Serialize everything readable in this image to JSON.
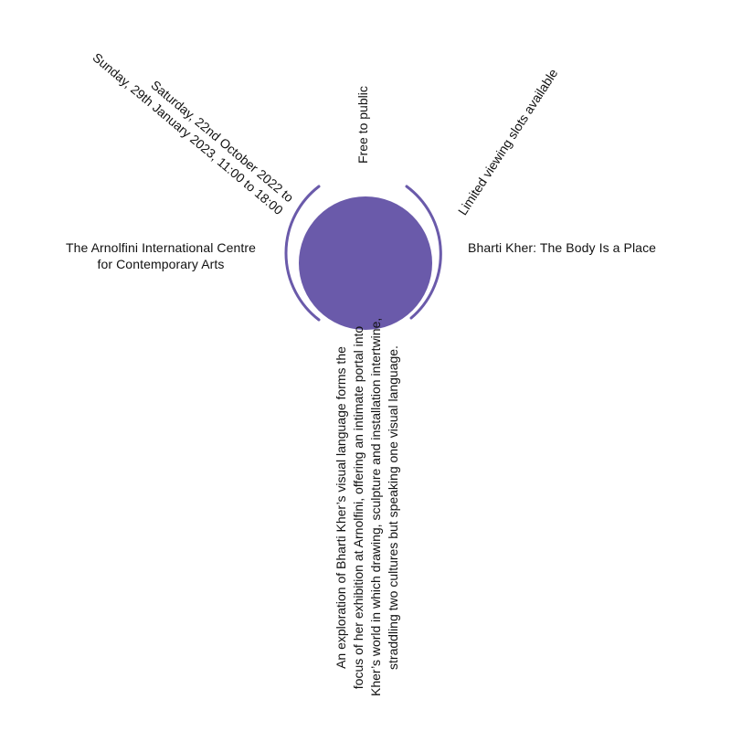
{
  "accent_color": "#6a5aaa",
  "venue": {
    "line1": "The Arnolfini International Centre",
    "line2": "for Contemporary Arts"
  },
  "title": "Bharti Kher: The Body Is a Place",
  "admission": "Free to public",
  "availability": "Limited viewing slots available",
  "dates": {
    "line1": "Saturday, 22nd October 2022 to",
    "line2": "Sunday, 29th January 2023, 11:00 to 18:00"
  },
  "description": {
    "line1": "An exploration of Bharti Kher’s visual language forms the",
    "line2": "focus of her exhibition at Arnolfini, offering an intimate portal into",
    "line3": "Kher’s world in which drawing, sculpture and installation intertwine,",
    "line4": "straddling two cultures but speaking one visual language."
  }
}
